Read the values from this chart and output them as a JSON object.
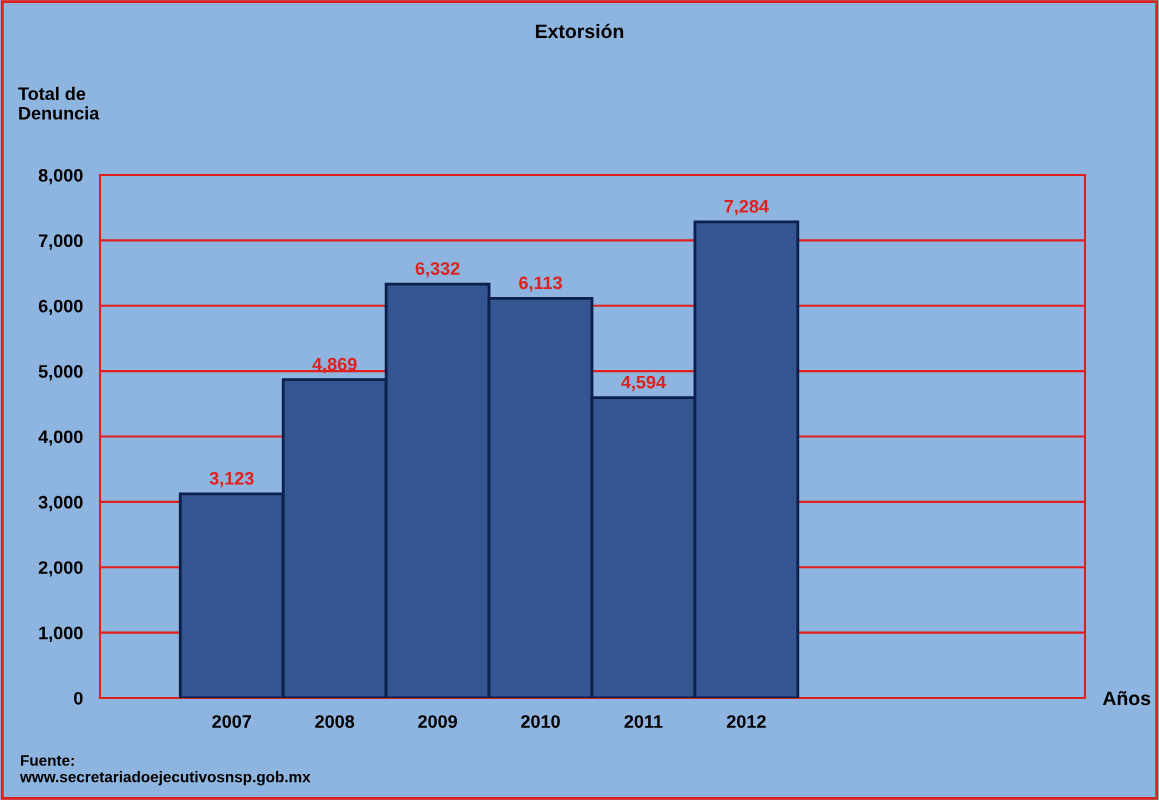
{
  "chart_data": {
    "type": "bar",
    "title": "Extorsión",
    "ylabel": "Total de\nDenuncia",
    "categories": [
      "2007",
      "2008",
      "2009",
      "2010",
      "2011",
      "2012"
    ],
    "values": [
      3123,
      4869,
      6332,
      6113,
      4594,
      7284
    ],
    "value_labels": [
      "3,123",
      "4,869",
      "6,332",
      "6,113",
      "4,594",
      "7,284"
    ],
    "color": "#34558f",
    "ylim": [
      0,
      8000
    ],
    "yticks": [
      {
        "value": 0,
        "label": "0"
      },
      {
        "value": 1000,
        "label": "1,000"
      },
      {
        "value": 2000,
        "label": "2,000"
      },
      {
        "value": 3000,
        "label": "3,000"
      },
      {
        "value": 4000,
        "label": "4,000"
      },
      {
        "value": 5000,
        "label": "5,000"
      },
      {
        "value": 6000,
        "label": "6,000"
      },
      {
        "value": 7000,
        "label": "7,000"
      },
      {
        "value": 8000,
        "label": "8,000"
      }
    ],
    "grid": "y",
    "annotations": [
      "Años",
      "Fuente:\nwww.secretariadoejecutivosnsp.gob.mx"
    ]
  }
}
